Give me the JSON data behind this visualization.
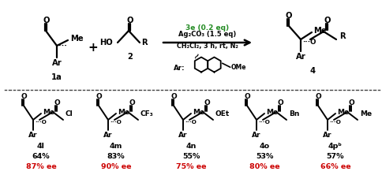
{
  "bg_color": "#ffffff",
  "green_color": "#228B22",
  "red_color": "#cc0000",
  "black_color": "#000000",
  "condition_line1": "3e (0.2 eq)",
  "condition_line2": "Ag₂CO₃ (1.5 eq)",
  "condition_line3": "CH₂Cl₂, 3 h, rt, N₂",
  "compounds": [
    "4l",
    "4m",
    "4n",
    "4o",
    "4pᵇ"
  ],
  "yields": [
    "64%",
    "83%",
    "55%",
    "53%",
    "57%"
  ],
  "ee_values": [
    "87% ee",
    "90% ee",
    "75% ee",
    "80% ee",
    "66% ee"
  ],
  "substituents": [
    "Cl",
    "CF₃",
    "OEt",
    "Bn",
    "Me"
  ],
  "figsize": [
    4.85,
    2.22
  ],
  "dpi": 100
}
